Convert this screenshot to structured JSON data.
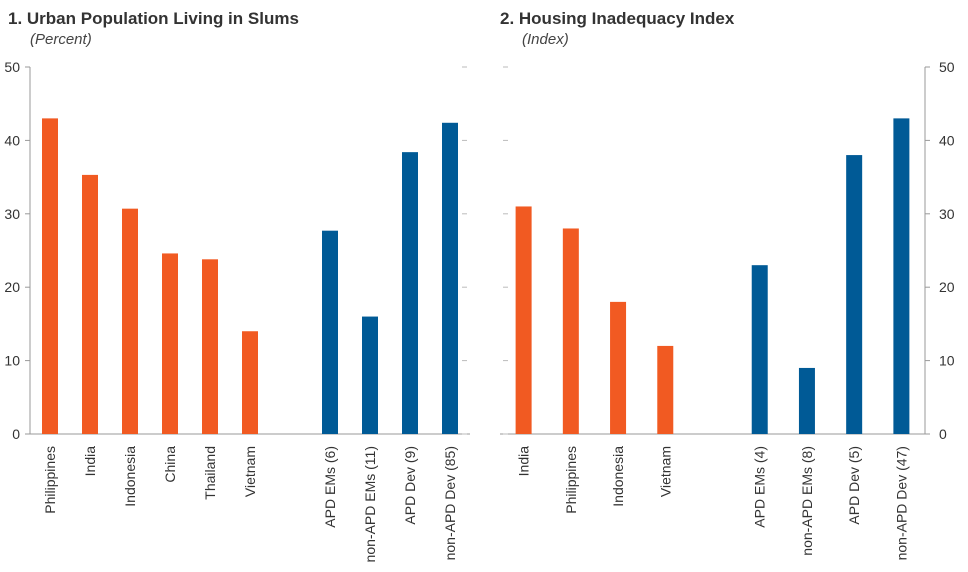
{
  "chart_data": [
    {
      "type": "bar",
      "title": "1. Urban Population Living in Slums",
      "subtitle": "(Percent)",
      "categories": [
        "Philippines",
        "India",
        "Indonesia",
        "China",
        "Thailand",
        "Vietnam",
        null,
        "APD EMs (6)",
        "non-APD EMs (11)",
        "APD Dev (9)",
        "non-APD Dev (85)"
      ],
      "values": [
        43,
        35.3,
        30.7,
        24.6,
        23.8,
        14,
        null,
        27.7,
        16,
        38.4,
        42.4
      ],
      "colors": [
        "#f15a22",
        "#f15a22",
        "#f15a22",
        "#f15a22",
        "#f15a22",
        "#f15a22",
        null,
        "#005a96",
        "#005a96",
        "#005a96",
        "#005a96"
      ],
      "ylim": [
        0,
        50
      ],
      "yticks": [
        0,
        10,
        20,
        30,
        40,
        50
      ],
      "y_axis_side": "left"
    },
    {
      "type": "bar",
      "title": "2. Housing Inadequacy Index",
      "subtitle": "(Index)",
      "categories": [
        "India",
        "Philippines",
        "Indonesia",
        "Vietnam",
        null,
        "APD EMs (4)",
        "non-APD EMs (8)",
        "APD Dev (5)",
        "non-APD Dev (47)"
      ],
      "values": [
        31,
        28,
        18,
        12,
        null,
        23,
        9,
        38,
        43
      ],
      "colors": [
        "#f15a22",
        "#f15a22",
        "#f15a22",
        "#f15a22",
        null,
        "#005a96",
        "#005a96",
        "#005a96",
        "#005a96"
      ],
      "ylim": [
        0,
        50
      ],
      "yticks": [
        0,
        10,
        20,
        30,
        40,
        50
      ],
      "y_axis_side": "right"
    }
  ]
}
